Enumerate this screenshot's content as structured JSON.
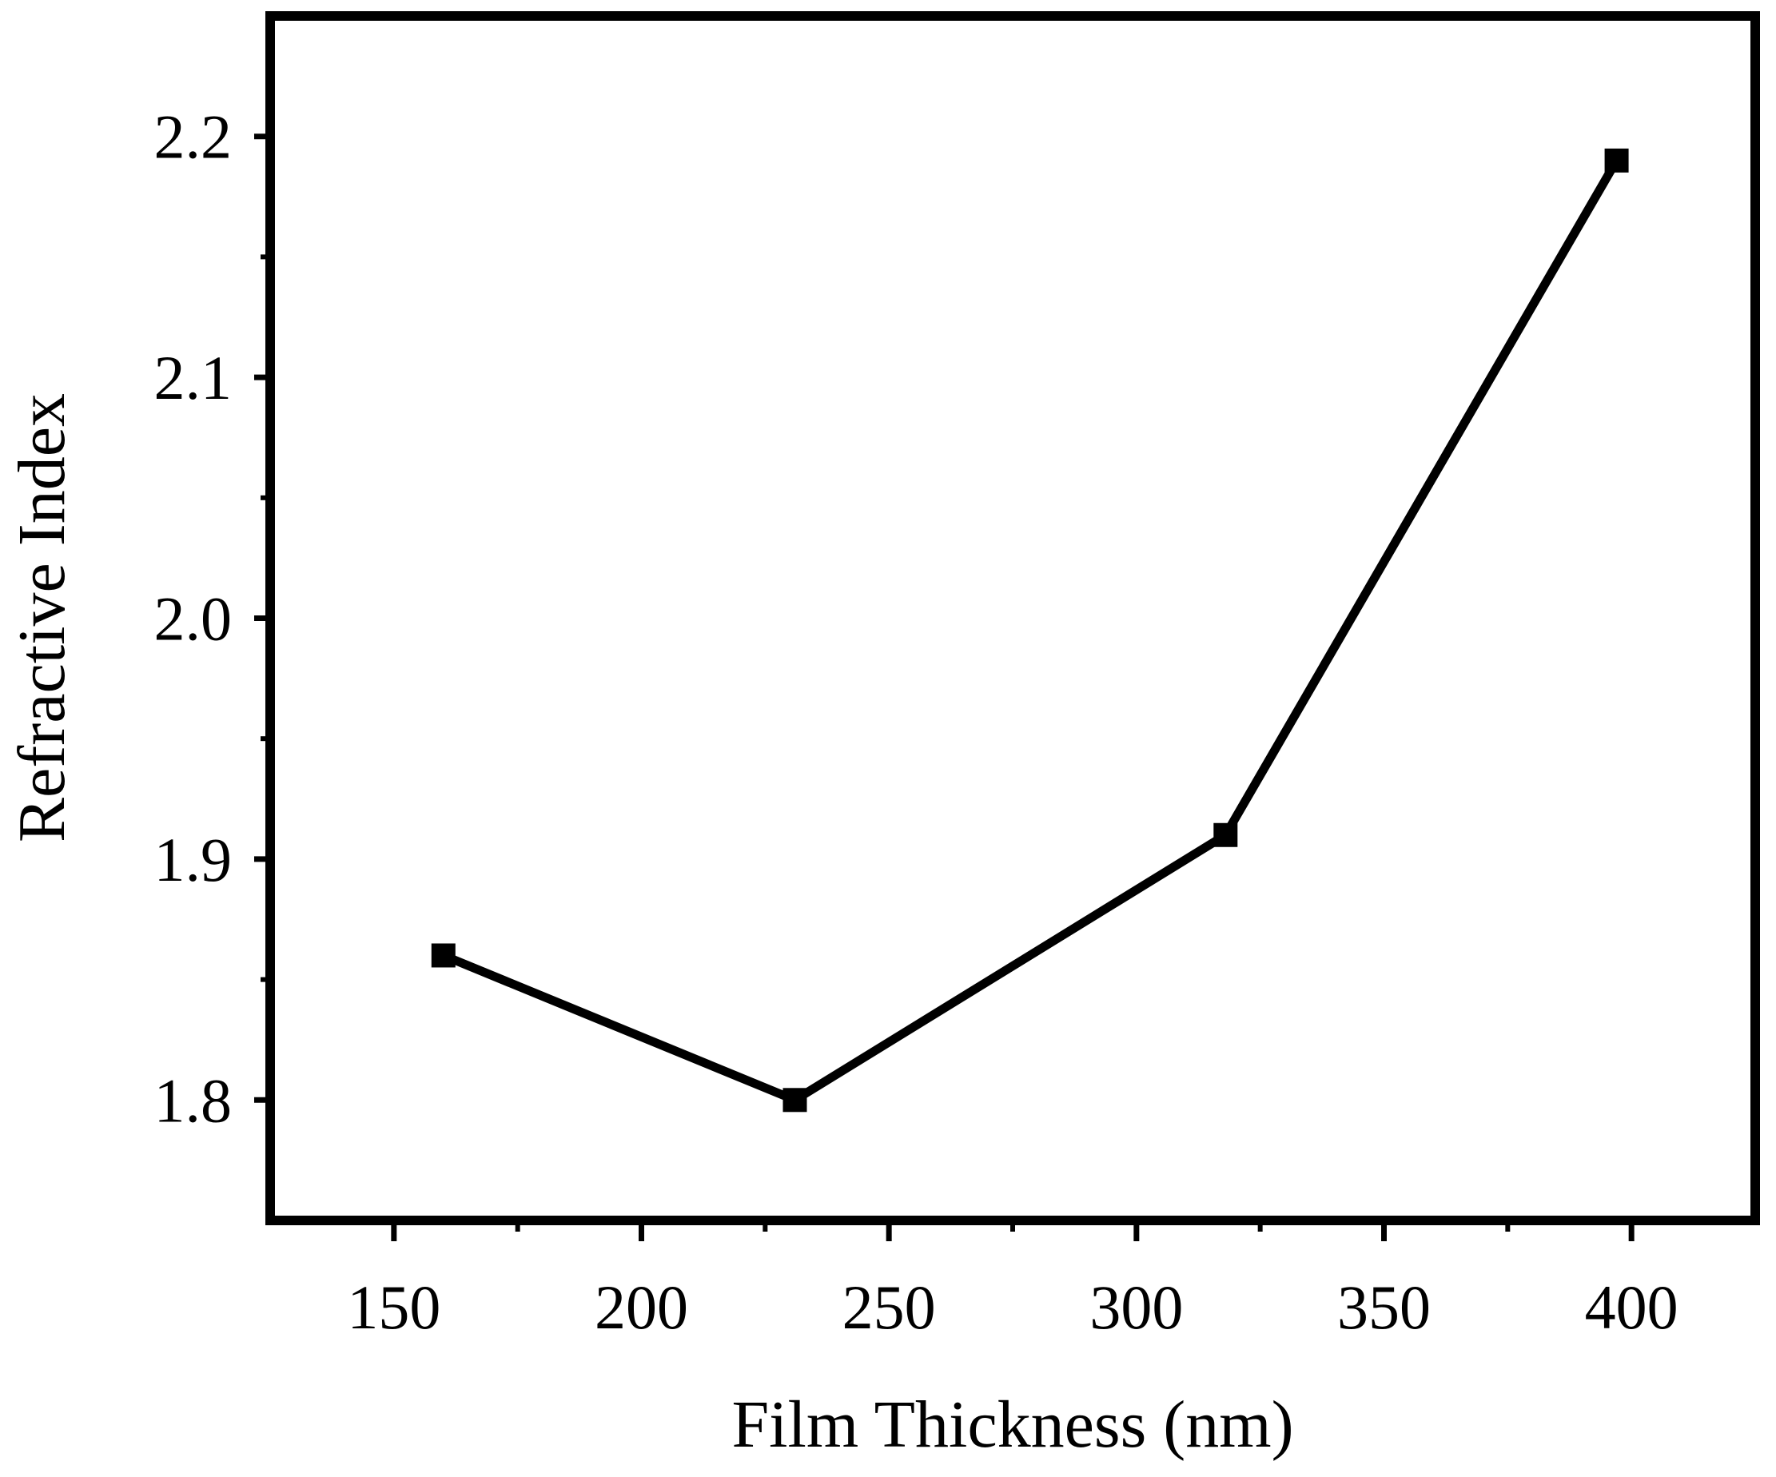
{
  "chart_data": {
    "type": "line",
    "title": "",
    "xlabel": "Film Thickness (nm)",
    "ylabel": "Refractive Index",
    "xlim": [
      125,
      425
    ],
    "ylim": [
      1.75,
      2.25
    ],
    "x_ticks": [
      150,
      200,
      250,
      300,
      350,
      400
    ],
    "x_minor_ticks": [
      175,
      225,
      275,
      325,
      375
    ],
    "y_ticks": [
      1.8,
      1.9,
      2.0,
      2.1,
      2.2
    ],
    "y_tick_labels": [
      "1.8",
      "1.9",
      "2.0",
      "2.1",
      "2.2"
    ],
    "y_minor_ticks": [
      1.85,
      1.95,
      2.05,
      2.15
    ],
    "grid": false,
    "marker": "square",
    "line_color": "#000000",
    "series": [
      {
        "x": [
          160,
          231,
          318,
          397
        ],
        "y": [
          1.86,
          1.8,
          1.91,
          2.19
        ]
      }
    ]
  }
}
